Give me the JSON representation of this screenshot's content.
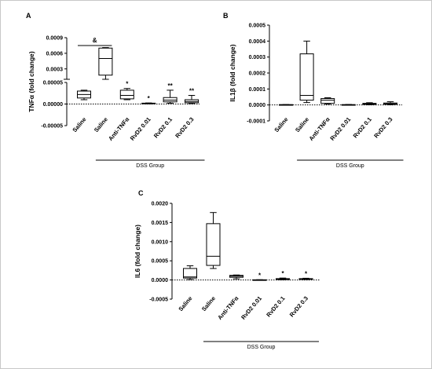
{
  "chart_data": [
    {
      "panel": "A",
      "type": "boxplot",
      "ylabel": "TNFα (fold change)",
      "xgroup": "DSS Group",
      "categories": [
        "Saline",
        "Saline",
        "Anti-TNFα",
        "RvD2 0.01",
        "RvD2 0.1",
        "RvD2 0.3"
      ],
      "split_axis": true,
      "lower_ticks": [
        "-0.00005",
        "0.00000",
        "0.00005"
      ],
      "upper_ticks": [
        "0.0003",
        "0.0006",
        "0.0009"
      ],
      "boxes": [
        {
          "min": 1e-05,
          "q1": 1.4e-05,
          "median": 2.2e-05,
          "q3": 3e-05,
          "max": 3.2e-05
        },
        {
          "min": 8e-05,
          "q1": 0.00018,
          "median": 0.0005,
          "q3": 0.0007,
          "max": 0.00071
        },
        {
          "min": 1e-05,
          "q1": 1.2e-05,
          "median": 2e-05,
          "q3": 3.2e-05,
          "max": 3.6e-05
        },
        {
          "min": 5e-07,
          "q1": 1e-06,
          "median": 1.5e-06,
          "q3": 2e-06,
          "max": 2.5e-06
        },
        {
          "min": 2e-06,
          "q1": 5e-06,
          "median": 9e-06,
          "q3": 1.5e-05,
          "max": 3.2e-05
        },
        {
          "min": 1e-06,
          "q1": 3e-06,
          "median": 6e-06,
          "q3": 1e-05,
          "max": 2e-05
        }
      ],
      "annotations": [
        "",
        "",
        "*",
        "*",
        "**",
        "**"
      ],
      "bracket_label": "&"
    },
    {
      "panel": "B",
      "type": "boxplot",
      "ylabel": "IL1β (fold change)",
      "xgroup": "DSS Group",
      "categories": [
        "Saline",
        "Saline",
        "Anti-TNFα",
        "RvD2 0.01",
        "RvD2 0.1",
        "RvD2 0.3"
      ],
      "ylim": [
        -0.0001,
        0.0005
      ],
      "ticks": [
        "-0.0001",
        "0.0000",
        "0.0001",
        "0.0002",
        "0.0003",
        "0.0004",
        "0.0005"
      ],
      "tick_values": [
        -0.0001,
        0,
        0.0001,
        0.0002,
        0.0003,
        0.0004,
        0.0005
      ],
      "boxes": [
        {
          "min": 5e-07,
          "q1": 1e-06,
          "median": 1.5e-06,
          "q3": 2e-06,
          "max": 2.5e-06
        },
        {
          "min": 1.5e-05,
          "q1": 3e-05,
          "median": 6e-05,
          "q3": 0.00032,
          "max": 0.0004
        },
        {
          "min": 5e-06,
          "q1": 1e-05,
          "median": 3e-05,
          "q3": 4e-05,
          "max": 4.5e-05
        },
        {
          "min": 5e-07,
          "q1": 1e-06,
          "median": 1.5e-06,
          "q3": 2e-06,
          "max": 3e-06
        },
        {
          "min": 1e-06,
          "q1": 3e-06,
          "median": 6e-06,
          "q3": 1e-05,
          "max": 1.4e-05
        },
        {
          "min": 1e-06,
          "q1": 4e-06,
          "median": 7e-06,
          "q3": 1.2e-05,
          "max": 2e-05
        }
      ],
      "annotations": [
        "",
        "",
        "",
        "",
        "",
        ""
      ]
    },
    {
      "panel": "C",
      "type": "boxplot",
      "ylabel": "IL6 (fold change)",
      "xgroup": "DSS Group",
      "categories": [
        "Saline",
        "Saline",
        "Anti-TNFα",
        "RvD2 0.01",
        "RvD2 0.1",
        "RvD2 0.3"
      ],
      "ylim": [
        -0.0005,
        0.002
      ],
      "ticks": [
        "-0.0005",
        "0.0000",
        "0.0005",
        "0.0010",
        "0.0015",
        "0.0020"
      ],
      "tick_values": [
        -0.0005,
        0,
        0.0005,
        0.001,
        0.0015,
        0.002
      ],
      "boxes": [
        {
          "min": 1e-05,
          "q1": 5e-05,
          "median": 8e-05,
          "q3": 0.0003,
          "max": 0.00037
        },
        {
          "min": 0.0003,
          "q1": 0.00038,
          "median": 0.00062,
          "q3": 0.00147,
          "max": 0.00176
        },
        {
          "min": 3e-05,
          "q1": 7e-05,
          "median": 0.0001,
          "q3": 0.00012,
          "max": 0.00013
        },
        {
          "min": 1e-06,
          "q1": 2e-06,
          "median": 3e-06,
          "q3": 5e-06,
          "max": 7e-06
        },
        {
          "min": 5e-06,
          "q1": 1e-05,
          "median": 2e-05,
          "q3": 3.5e-05,
          "max": 5e-05
        },
        {
          "min": 1e-05,
          "q1": 1.5e-05,
          "median": 2.5e-05,
          "q3": 3.5e-05,
          "max": 4.5e-05
        }
      ],
      "annotations": [
        "",
        "",
        "",
        "*",
        "*",
        "*"
      ]
    }
  ]
}
